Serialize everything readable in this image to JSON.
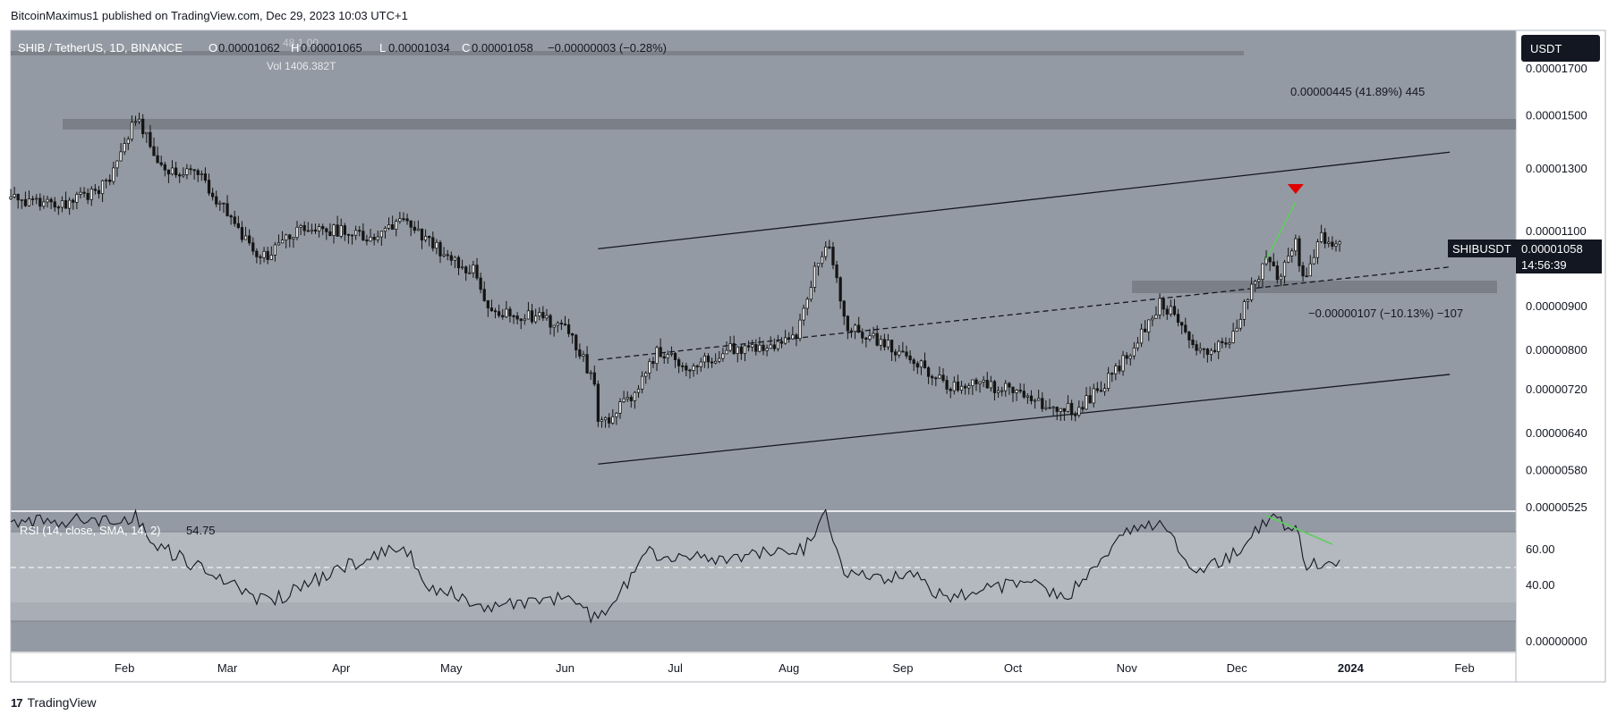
{
  "header": {
    "published": "BitcoinMaximus1 published on TradingView.com, Dec 29, 2023 10:03 UTC+1"
  },
  "footer": {
    "brand": "TradingView",
    "logo": "17"
  },
  "legend": {
    "symbol": "SHIB / TetherUS, 1D, BINANCE",
    "o_label": "O",
    "o": "0.00001062",
    "h_label": "H",
    "h": "0.00001065",
    "l_label": "L",
    "l": "0.00001034",
    "c_label": "C",
    "c": "0.00001058",
    "change": "−0.00000003 (−0.28%)",
    "ghost": "48.1.00",
    "vol": "Vol 1406.382T"
  },
  "currency": "USDT",
  "price_tag": {
    "symbol": "SHIBUSDT",
    "price": "0.00001058",
    "countdown": "14:56:39"
  },
  "annotations": {
    "upper_measure": "0.00000445 (41.89%) 445",
    "lower_measure": "−0.00000107 (−10.13%) −107"
  },
  "rsi": {
    "label": "RSI (14, close, SMA, 14, 2)",
    "value": "54.75",
    "ticks": [
      60,
      40
    ],
    "tick_labels": [
      "60.00",
      "40.00"
    ]
  },
  "colors": {
    "pane_bg": "#949aa3",
    "candle": "#141414",
    "resistance_zone": "#7b8088",
    "red_marker": "#e00000",
    "green_divergence": "#5cd05c"
  },
  "chart_data": {
    "type": "candlestick",
    "symbol": "SHIB/USDT",
    "interval": "1D",
    "x_axis_labels": [
      "Feb",
      "Mar",
      "Apr",
      "May",
      "Jun",
      "Jul",
      "Aug",
      "Sep",
      "Oct",
      "Nov",
      "Dec",
      "2024",
      "Feb"
    ],
    "y_axis": {
      "scale": "log",
      "ticks": [
        1.7e-05,
        1.5e-05,
        1.3e-05,
        1.1e-05,
        9e-06,
        8e-06,
        7.2e-06,
        6.4e-06,
        5.8e-06,
        5.25e-06
      ],
      "tick_labels": [
        "0.00001700",
        "0.00001500",
        "0.00001300",
        "0.00001100",
        "0.00000900",
        "0.00000800",
        "0.00000720",
        "0.00000640",
        "0.00000580",
        "0.00000525"
      ]
    },
    "close_path": [
      {
        "date": "2023-01-01",
        "close": 1.2e-05
      },
      {
        "date": "2023-01-15",
        "close": 1.18e-05
      },
      {
        "date": "2023-01-28",
        "close": 1.25e-05
      },
      {
        "date": "2023-02-04",
        "close": 1.49e-05
      },
      {
        "date": "2023-02-12",
        "close": 1.3e-05
      },
      {
        "date": "2023-02-22",
        "close": 1.27e-05
      },
      {
        "date": "2023-03-01",
        "close": 1.15e-05
      },
      {
        "date": "2023-03-10",
        "close": 1.02e-05
      },
      {
        "date": "2023-03-20",
        "close": 1.1e-05
      },
      {
        "date": "2023-04-01",
        "close": 1.1e-05
      },
      {
        "date": "2023-04-10",
        "close": 1.08e-05
      },
      {
        "date": "2023-04-18",
        "close": 1.15e-05
      },
      {
        "date": "2023-04-28",
        "close": 1.04e-05
      },
      {
        "date": "2023-05-07",
        "close": 9.9e-06
      },
      {
        "date": "2023-05-12",
        "close": 8.8e-06
      },
      {
        "date": "2023-05-22",
        "close": 8.8e-06
      },
      {
        "date": "2023-06-01",
        "close": 8.5e-06
      },
      {
        "date": "2023-06-09",
        "close": 7.4e-06
      },
      {
        "date": "2023-06-10",
        "close": 6.5e-06
      },
      {
        "date": "2023-06-20",
        "close": 7.1e-06
      },
      {
        "date": "2023-06-26",
        "close": 8e-06
      },
      {
        "date": "2023-07-05",
        "close": 7.6e-06
      },
      {
        "date": "2023-07-15",
        "close": 8e-06
      },
      {
        "date": "2023-07-25",
        "close": 8.1e-06
      },
      {
        "date": "2023-08-03",
        "close": 8.3e-06
      },
      {
        "date": "2023-08-08",
        "close": 1e-05
      },
      {
        "date": "2023-08-12",
        "close": 1.05e-05
      },
      {
        "date": "2023-08-17",
        "close": 8.5e-06
      },
      {
        "date": "2023-08-25",
        "close": 8.2e-06
      },
      {
        "date": "2023-09-03",
        "close": 7.9e-06
      },
      {
        "date": "2023-09-12",
        "close": 7.3e-06
      },
      {
        "date": "2023-09-22",
        "close": 7.3e-06
      },
      {
        "date": "2023-10-01",
        "close": 7.2e-06
      },
      {
        "date": "2023-10-10",
        "close": 6.9e-06
      },
      {
        "date": "2023-10-18",
        "close": 6.8e-06
      },
      {
        "date": "2023-10-27",
        "close": 7.4e-06
      },
      {
        "date": "2023-11-04",
        "close": 8.2e-06
      },
      {
        "date": "2023-11-10",
        "close": 9.1e-06
      },
      {
        "date": "2023-11-16",
        "close": 8.6e-06
      },
      {
        "date": "2023-11-22",
        "close": 7.9e-06
      },
      {
        "date": "2023-11-29",
        "close": 8.2e-06
      },
      {
        "date": "2023-12-04",
        "close": 9.3e-06
      },
      {
        "date": "2023-12-09",
        "close": 1.02e-05
      },
      {
        "date": "2023-12-13",
        "close": 9.7e-06
      },
      {
        "date": "2023-12-17",
        "close": 1.08e-05
      },
      {
        "date": "2023-12-19",
        "close": 9.6e-06
      },
      {
        "date": "2023-12-24",
        "close": 1.08e-05
      },
      {
        "date": "2023-12-29",
        "close": 1.058e-05
      }
    ],
    "channel": {
      "upper": [
        {
          "date": "2023-06-10",
          "price": 1.05e-05
        },
        {
          "date": "2024-01-28",
          "price": 1.36e-05
        }
      ],
      "middle": [
        {
          "date": "2023-06-10",
          "price": 7.8e-06
        },
        {
          "date": "2024-01-28",
          "price": 1e-05
        }
      ],
      "lower": [
        {
          "date": "2023-06-10",
          "price": 5.9e-06
        },
        {
          "date": "2024-01-28",
          "price": 7.5e-06
        }
      ]
    },
    "zones": [
      {
        "name": "resistance",
        "from": 1.48e-05,
        "to": 1.52e-05
      },
      {
        "name": "support",
        "from": 9.5e-06,
        "to": 9.7e-06
      }
    ],
    "rsi_path": [
      {
        "date": "2023-01-01",
        "value": 75
      },
      {
        "date": "2023-02-04",
        "value": 78
      },
      {
        "date": "2023-02-10",
        "value": 62
      },
      {
        "date": "2023-03-05",
        "value": 38
      },
      {
        "date": "2023-03-12",
        "value": 30
      },
      {
        "date": "2023-04-01",
        "value": 50
      },
      {
        "date": "2023-04-18",
        "value": 62
      },
      {
        "date": "2023-04-25",
        "value": 40
      },
      {
        "date": "2023-05-10",
        "value": 28
      },
      {
        "date": "2023-05-20",
        "value": 30
      },
      {
        "date": "2023-06-01",
        "value": 34
      },
      {
        "date": "2023-06-10",
        "value": 20
      },
      {
        "date": "2023-06-24",
        "value": 58
      },
      {
        "date": "2023-07-10",
        "value": 55
      },
      {
        "date": "2023-08-05",
        "value": 60
      },
      {
        "date": "2023-08-11",
        "value": 80
      },
      {
        "date": "2023-08-16",
        "value": 45
      },
      {
        "date": "2023-09-05",
        "value": 45
      },
      {
        "date": "2023-09-12",
        "value": 33
      },
      {
        "date": "2023-10-05",
        "value": 42
      },
      {
        "date": "2023-10-15",
        "value": 32
      },
      {
        "date": "2023-10-25",
        "value": 54
      },
      {
        "date": "2023-11-02",
        "value": 72
      },
      {
        "date": "2023-11-10",
        "value": 75
      },
      {
        "date": "2023-11-20",
        "value": 48
      },
      {
        "date": "2023-12-01",
        "value": 58
      },
      {
        "date": "2023-12-10",
        "value": 78
      },
      {
        "date": "2023-12-17",
        "value": 72
      },
      {
        "date": "2023-12-20",
        "value": 52
      },
      {
        "date": "2023-12-29",
        "value": 54.75
      }
    ],
    "divergence": {
      "price": [
        {
          "date": "2023-12-09",
          "price": 1.02e-05
        },
        {
          "date": "2023-12-17",
          "price": 1.19e-05
        }
      ],
      "rsi": [
        {
          "date": "2023-12-09",
          "value": 79
        },
        {
          "date": "2023-12-27",
          "value": 63
        }
      ]
    },
    "marker": {
      "type": "down-triangle",
      "date": "2023-12-17",
      "price": 1.19e-05
    }
  }
}
